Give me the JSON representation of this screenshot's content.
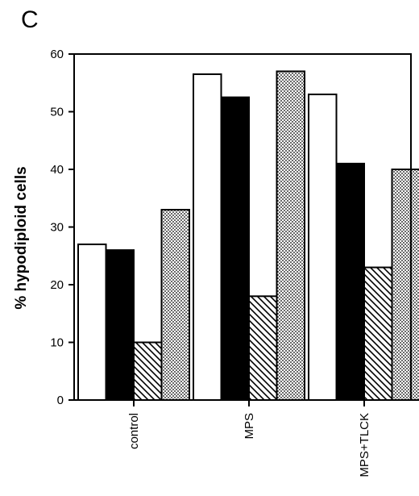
{
  "panel_label": "C",
  "chart_data": {
    "type": "bar",
    "title": "",
    "xlabel": "",
    "ylabel": "% hypodiploid cells",
    "ylim": [
      0,
      60
    ],
    "yticks": [
      "0",
      "10",
      "20",
      "30",
      "40",
      "50",
      "60"
    ],
    "categories": [
      "control",
      "MPS",
      "MPS+TLCK"
    ],
    "series": [
      {
        "values": [
          27,
          56.5,
          53
        ],
        "fill": "white"
      },
      {
        "values": [
          26,
          52.5,
          41
        ],
        "fill": "black"
      },
      {
        "values": [
          10,
          18,
          23
        ],
        "fill": "hatched"
      },
      {
        "values": [
          33,
          57,
          40
        ],
        "fill": "stippled"
      }
    ],
    "grid": false,
    "legend": "none"
  }
}
